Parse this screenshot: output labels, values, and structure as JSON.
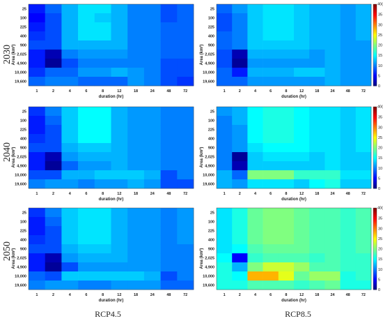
{
  "rows": [
    "2030",
    "2040",
    "2050"
  ],
  "columns": [
    "RCP4.5",
    "RCP8.5"
  ],
  "chart_data": {
    "type": "heatmap",
    "x_categories": [
      "1",
      "2",
      "4",
      "6",
      "8",
      "12",
      "18",
      "24",
      "48",
      "72"
    ],
    "y_categories": [
      "25",
      "100",
      "225",
      "400",
      "900",
      "2,025",
      "4,900",
      "10,000",
      "19,600"
    ],
    "xlabel": "duration (hr)",
    "ylabel": "Area (km²)",
    "colorbar": {
      "min": 0,
      "max": 40,
      "ticks": [
        0,
        5,
        10,
        15,
        20,
        25,
        30,
        35,
        40
      ],
      "unit": "40(%)"
    },
    "panels": [
      {
        "row": "2030",
        "column": "RCP4.5",
        "values": [
          [
            6,
            9,
            12,
            14,
            14,
            12,
            10,
            10,
            8,
            9
          ],
          [
            5,
            8,
            12,
            14,
            13,
            12,
            10,
            10,
            8,
            9
          ],
          [
            6,
            8,
            12,
            14,
            14,
            12,
            10,
            10,
            9,
            9
          ],
          [
            7,
            8,
            12,
            14,
            14,
            12,
            10,
            10,
            9,
            9
          ],
          [
            8,
            8,
            12,
            12,
            12,
            12,
            10,
            10,
            9,
            9
          ],
          [
            6,
            2,
            10,
            11,
            11,
            11,
            10,
            10,
            9,
            9
          ],
          [
            6,
            1,
            8,
            10,
            10,
            10,
            10,
            10,
            8,
            8
          ],
          [
            7,
            9,
            9,
            11,
            11,
            12,
            11,
            10,
            8,
            8
          ],
          [
            9,
            10,
            10,
            9,
            9,
            9,
            11,
            10,
            8,
            7
          ]
        ]
      },
      {
        "row": "2030",
        "column": "RCP8.5",
        "values": [
          [
            9,
            11,
            13,
            14,
            14,
            13,
            12,
            12,
            11,
            12
          ],
          [
            8,
            10,
            13,
            14,
            14,
            13,
            12,
            12,
            11,
            12
          ],
          [
            8,
            10,
            13,
            14,
            14,
            13,
            12,
            12,
            11,
            12
          ],
          [
            9,
            10,
            13,
            14,
            14,
            13,
            12,
            12,
            11,
            12
          ],
          [
            9,
            10,
            13,
            13,
            13,
            13,
            12,
            12,
            11,
            11
          ],
          [
            8,
            2,
            12,
            12,
            12,
            12,
            11,
            12,
            11,
            11
          ],
          [
            8,
            1,
            11,
            11,
            11,
            11,
            11,
            12,
            11,
            11
          ],
          [
            9,
            6,
            12,
            12,
            12,
            13,
            13,
            12,
            11,
            11
          ],
          [
            9,
            9,
            11,
            11,
            11,
            11,
            11,
            12,
            11,
            11
          ]
        ]
      },
      {
        "row": "2040",
        "column": "RCP4.5",
        "values": [
          [
            7,
            10,
            13,
            15,
            15,
            12,
            11,
            11,
            10,
            10
          ],
          [
            6,
            9,
            13,
            15,
            15,
            12,
            11,
            11,
            10,
            10
          ],
          [
            6,
            8,
            13,
            15,
            15,
            12,
            11,
            11,
            10,
            10
          ],
          [
            7,
            8,
            13,
            15,
            15,
            12,
            11,
            11,
            10,
            10
          ],
          [
            8,
            8,
            12,
            13,
            13,
            12,
            11,
            11,
            10,
            10
          ],
          [
            6,
            2,
            11,
            12,
            12,
            12,
            11,
            11,
            10,
            10
          ],
          [
            6,
            1,
            9,
            11,
            11,
            12,
            11,
            11,
            10,
            10
          ],
          [
            8,
            8,
            12,
            12,
            13,
            13,
            13,
            12,
            8,
            10
          ],
          [
            10,
            11,
            11,
            10,
            11,
            11,
            12,
            11,
            8,
            8
          ]
        ]
      },
      {
        "row": "2040",
        "column": "RCP8.5",
        "values": [
          [
            11,
            12,
            15,
            16,
            16,
            15,
            14,
            14,
            13,
            14
          ],
          [
            10,
            12,
            15,
            16,
            16,
            15,
            14,
            14,
            13,
            14
          ],
          [
            10,
            11,
            15,
            16,
            16,
            15,
            14,
            14,
            13,
            14
          ],
          [
            10,
            11,
            15,
            16,
            16,
            15,
            14,
            14,
            13,
            14
          ],
          [
            10,
            11,
            14,
            15,
            15,
            15,
            14,
            14,
            13,
            14
          ],
          [
            10,
            1,
            13,
            14,
            14,
            14,
            13,
            14,
            13,
            13
          ],
          [
            10,
            2,
            13,
            13,
            13,
            13,
            13,
            14,
            13,
            13
          ],
          [
            12,
            9,
            20,
            20,
            20,
            17,
            17,
            17,
            14,
            14
          ],
          [
            12,
            11,
            14,
            14,
            14,
            13,
            15,
            16,
            13,
            13
          ]
        ]
      },
      {
        "row": "2050",
        "column": "RCP4.5",
        "values": [
          [
            7,
            10,
            13,
            14,
            14,
            12,
            11,
            11,
            10,
            11
          ],
          [
            6,
            9,
            13,
            14,
            14,
            12,
            11,
            11,
            10,
            11
          ],
          [
            6,
            8,
            13,
            14,
            14,
            12,
            11,
            11,
            10,
            11
          ],
          [
            7,
            8,
            13,
            14,
            14,
            12,
            11,
            11,
            10,
            11
          ],
          [
            8,
            8,
            12,
            13,
            13,
            12,
            11,
            11,
            10,
            10
          ],
          [
            6,
            2,
            11,
            12,
            12,
            12,
            11,
            11,
            10,
            10
          ],
          [
            6,
            1,
            8,
            11,
            11,
            11,
            11,
            11,
            10,
            10
          ],
          [
            9,
            8,
            13,
            13,
            13,
            13,
            13,
            12,
            8,
            10
          ],
          [
            10,
            11,
            11,
            10,
            10,
            11,
            11,
            11,
            9,
            9
          ]
        ]
      },
      {
        "row": "2050",
        "column": "RCP8.5",
        "values": [
          [
            14,
            16,
            19,
            20,
            20,
            19,
            18,
            18,
            17,
            18
          ],
          [
            14,
            16,
            19,
            20,
            20,
            19,
            18,
            18,
            17,
            18
          ],
          [
            14,
            16,
            19,
            20,
            20,
            19,
            18,
            18,
            17,
            18
          ],
          [
            14,
            16,
            19,
            20,
            20,
            19,
            18,
            18,
            17,
            18
          ],
          [
            14,
            15,
            18,
            19,
            19,
            19,
            18,
            18,
            17,
            18
          ],
          [
            15,
            5,
            17,
            18,
            18,
            18,
            17,
            18,
            17,
            17
          ],
          [
            16,
            12,
            20,
            23,
            23,
            21,
            18,
            18,
            17,
            17
          ],
          [
            16,
            15,
            28,
            28,
            24,
            19,
            21,
            21,
            16,
            17
          ],
          [
            16,
            16,
            18,
            18,
            18,
            17,
            18,
            19,
            16,
            16
          ]
        ]
      }
    ]
  }
}
